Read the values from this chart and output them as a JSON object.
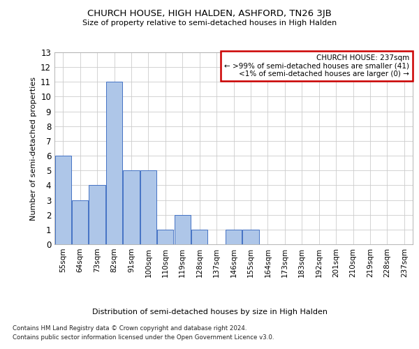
{
  "title": "CHURCH HOUSE, HIGH HALDEN, ASHFORD, TN26 3JB",
  "subtitle": "Size of property relative to semi-detached houses in High Halden",
  "xlabel": "Distribution of semi-detached houses by size in High Halden",
  "ylabel": "Number of semi-detached properties",
  "footnote1": "Contains HM Land Registry data © Crown copyright and database right 2024.",
  "footnote2": "Contains public sector information licensed under the Open Government Licence v3.0.",
  "bin_labels": [
    "55sqm",
    "64sqm",
    "73sqm",
    "82sqm",
    "91sqm",
    "100sqm",
    "110sqm",
    "119sqm",
    "128sqm",
    "137sqm",
    "146sqm",
    "155sqm",
    "164sqm",
    "173sqm",
    "183sqm",
    "192sqm",
    "201sqm",
    "210sqm",
    "219sqm",
    "228sqm",
    "237sqm"
  ],
  "values": [
    6,
    3,
    4,
    11,
    5,
    5,
    1,
    2,
    1,
    0,
    1,
    1,
    0,
    0,
    0,
    0,
    0,
    0,
    0,
    0,
    0
  ],
  "bar_color": "#aec6e8",
  "bar_edge_color": "#4472c4",
  "ylim": [
    0,
    13
  ],
  "yticks": [
    0,
    1,
    2,
    3,
    4,
    5,
    6,
    7,
    8,
    9,
    10,
    11,
    12,
    13
  ],
  "annotation_title": "CHURCH HOUSE: 237sqm",
  "annotation_line1": "← >99% of semi-detached houses are smaller (41)",
  "annotation_line2": "<1% of semi-detached houses are larger (0) →",
  "annotation_box_color": "#cc0000",
  "background_color": "#ffffff",
  "grid_color": "#cccccc"
}
